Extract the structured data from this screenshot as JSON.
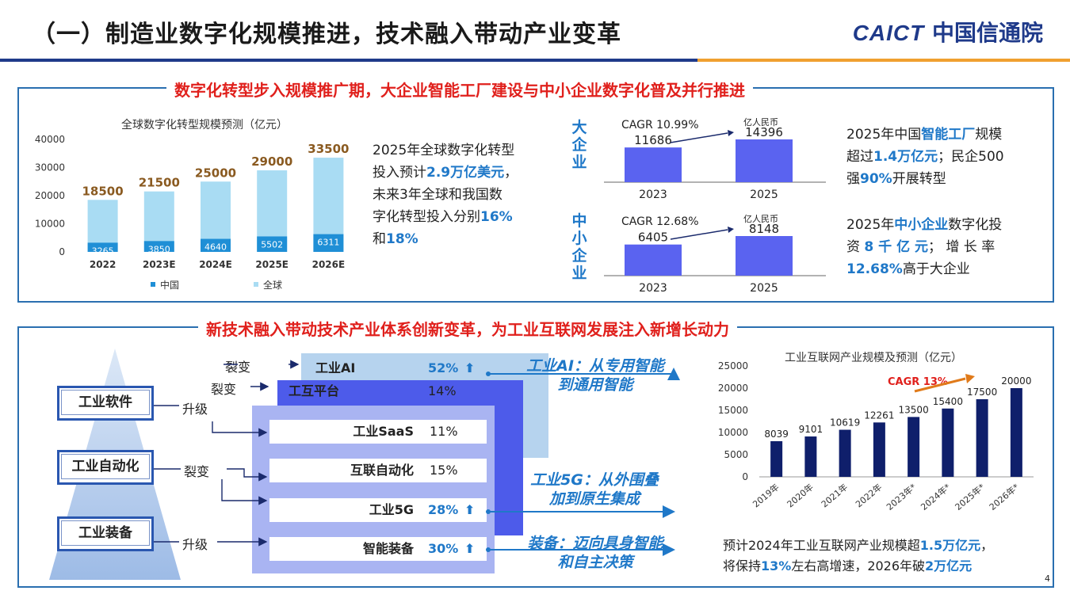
{
  "header": {
    "title": "（一）制造业数字化规模推进，技术融入带动产业变革",
    "logo_latin": "CAICT",
    "logo_cn": "中国信通院",
    "page_number": "4"
  },
  "top_section": {
    "title": "数字化转型步入规模推广期，大企业智能工厂建设与中小企业数字化普及并行推进",
    "global_text": {
      "p1": "2025年全球数字化转型",
      "p2a": "投入预计",
      "p2b": "2.9万亿美元",
      "p2c": "，",
      "p3": "未来3年全球和我国数",
      "p4a": "字化转型投入分别",
      "p4b": "16%",
      "p5a": "和",
      "p5b": "18%"
    },
    "large_label": [
      "大",
      "企",
      "业"
    ],
    "sme_label": [
      "中",
      "小",
      "企",
      "业"
    ],
    "large_text": {
      "l1a": "2025年中国",
      "l1b": "智能工厂",
      "l1c": "规模",
      "l2a": "超过",
      "l2b": "1.4万亿元",
      "l2c": "；民企500",
      "l3a": "强",
      "l3b": "90%",
      "l3c": "开展转型"
    },
    "sme_text": {
      "l1a": "2025年",
      "l1b": "中小企业",
      "l1c": "数字化投",
      "l2a": "资 ",
      "l2b": "8 千 亿 元",
      "l2c": "； 增 长 率",
      "l3a": "12.68%",
      "l3b": "高于大企业"
    }
  },
  "bottom_section": {
    "title": "新技术融入带动技术产业体系创新变革，为工业互联网发展注入新增长动力",
    "pyramid": {
      "software": "工业软件",
      "automation": "工业自动化",
      "equipment": "工业装备"
    },
    "relations": {
      "fission1": "裂变",
      "fission2": "裂变",
      "upgrade1": "升级",
      "fission3": "裂变",
      "upgrade2": "升级"
    },
    "tech": [
      {
        "name": "工业AI",
        "pct": "52%",
        "up": true
      },
      {
        "name": "工互平台",
        "pct": "14%",
        "up": false
      },
      {
        "name": "工业SaaS",
        "pct": "11%",
        "up": false
      },
      {
        "name": "互联自动化",
        "pct": "15%",
        "up": false
      },
      {
        "name": "工业5G",
        "pct": "28%",
        "up": true
      },
      {
        "name": "智能装备",
        "pct": "30%",
        "up": true
      }
    ],
    "trends": {
      "ai_1": "工业AI：从专用智能",
      "ai_2": "到通用智能",
      "g5_1": "工业5G：从外围叠",
      "g5_2": "加到原生集成",
      "eq_1": "装备：迈向具身智能",
      "eq_2": "和自主决策"
    },
    "iiot_text": {
      "l1a": "预计2024年工业互联网产业规模超",
      "l1b": "1.5万亿元",
      "l1c": "，",
      "l2a": "将保持",
      "l2b": "13%",
      "l2c": "左右高增速，2026年破",
      "l2d": "2万亿元"
    }
  },
  "colors": {
    "china": "#1f8fd6",
    "global": "#a9dcf3",
    "bar_dark": "#0f1f6b",
    "bar_mid": "#5a63f0",
    "accent_blue": "#1f78c8",
    "red": "#e0201c",
    "orange": "#e07a1a"
  },
  "chart_data": [
    {
      "type": "bar",
      "title": "全球数字化转型规模预测（亿元）",
      "categories": [
        "2022",
        "2023E",
        "2024E",
        "2025E",
        "2026E"
      ],
      "series": [
        {
          "name": "中国",
          "values": [
            3265,
            3850,
            4640,
            5502,
            6311
          ]
        },
        {
          "name": "全球",
          "values": [
            18500,
            21500,
            25000,
            29000,
            33500
          ]
        }
      ],
      "ylim": [
        0,
        40000
      ],
      "yticks": [
        "0",
        "10000",
        "20000",
        "30000",
        "40000"
      ],
      "legend": "bottom"
    },
    {
      "type": "bar",
      "categories": [
        "2023",
        "2025"
      ],
      "values": [
        11686,
        14396
      ],
      "unit": "亿人民币",
      "annotation": "CAGR 10.99%"
    },
    {
      "type": "bar",
      "categories": [
        "2023",
        "2025"
      ],
      "values": [
        6405,
        8148
      ],
      "unit": "亿人民币",
      "annotation": "CAGR 12.68%"
    },
    {
      "type": "bar",
      "title": "工业互联网产业规模及预测（亿元）",
      "categories": [
        "2019年",
        "2020年",
        "2021年",
        "2022年",
        "2023年*",
        "2024年*",
        "2025年*",
        "2026年*"
      ],
      "values": [
        8039,
        9101,
        10619,
        12261,
        13500,
        15400,
        17500,
        20000
      ],
      "ylim": [
        0,
        25000
      ],
      "yticks": [
        "0",
        "5000",
        "10000",
        "15000",
        "20000",
        "25000"
      ],
      "annotation": "CAGR 13%"
    }
  ]
}
